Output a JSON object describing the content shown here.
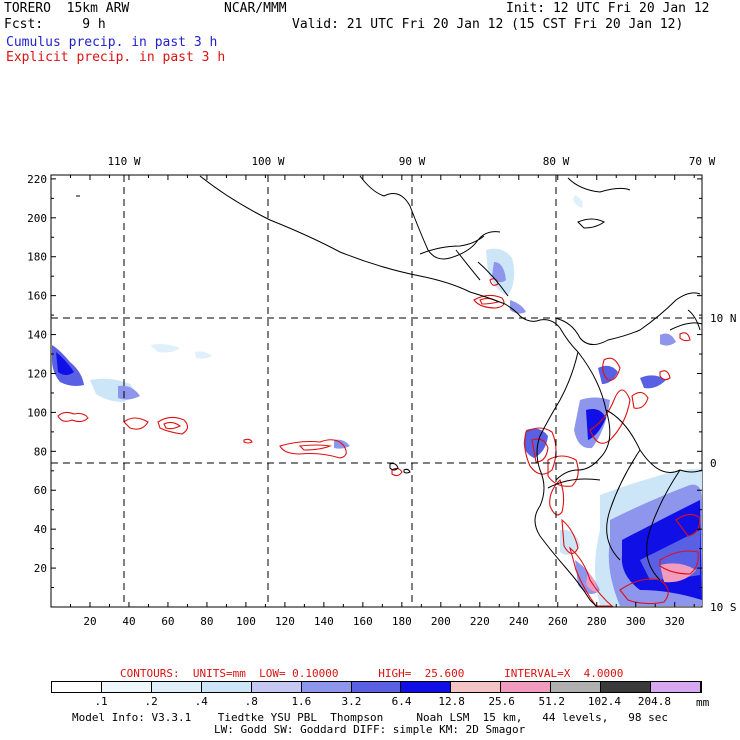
{
  "header": {
    "model": "TORERO  15km ARW",
    "org": "NCAR/MMM",
    "init": "Init: 12 UTC Fri 20 Jan 12",
    "fcst": "Fcst:     9 h",
    "valid": "Valid: 21 UTC Fri 20 Jan 12 (15 CST Fri 20 Jan 12)",
    "cumulus": "Cumulus precip. in past 3 h",
    "explicit": "Explicit precip. in past 3 h"
  },
  "colors": {
    "cumulus": "#2222cc",
    "explicit": "#dd1111",
    "coast": "#000000"
  },
  "map": {
    "lon_labels": [
      "110 W",
      "100 W",
      "90 W",
      "80 W",
      "70 W"
    ],
    "lat_labels": [
      "10 N",
      "0",
      "10 S"
    ],
    "x_ticks": [
      "20",
      "40",
      "60",
      "80",
      "100",
      "120",
      "140",
      "160",
      "180",
      "200",
      "220",
      "240",
      "260",
      "280",
      "300",
      "320"
    ],
    "y_ticks": [
      "220",
      "200",
      "180",
      "160",
      "140",
      "120",
      "100",
      "80",
      "60",
      "40",
      "20"
    ]
  },
  "contours": {
    "text": "CONTOURS:  UNITS=mm  LOW= 0.10000      HIGH=  25.600      INTERVAL=X  4.0000"
  },
  "colorbar": {
    "labels": [
      ".1",
      ".2",
      ".4",
      ".8",
      "1.6",
      "3.2",
      "6.4",
      "12.8",
      "25.6",
      "51.2",
      "102.4",
      "204.8"
    ],
    "unit": "mm",
    "colors": [
      "#ffffff",
      "#eef7fc",
      "#dff0fa",
      "#cde6f7",
      "#c5c8f2",
      "#8e95ec",
      "#5a60e4",
      "#0f0fe6",
      "#f4c4c4",
      "#f19bbf",
      "#b0b0b0",
      "#3a3a3a",
      "#d7a8f0"
    ]
  },
  "footer": {
    "line1": "Model Info: V3.3.1    Tiedtke YSU PBL  Thompson     Noah LSM  15 km,   44 levels,   98 sec",
    "line2": "LW: Godd SW: Goddard DIFF: simple KM: 2D Smagor"
  }
}
